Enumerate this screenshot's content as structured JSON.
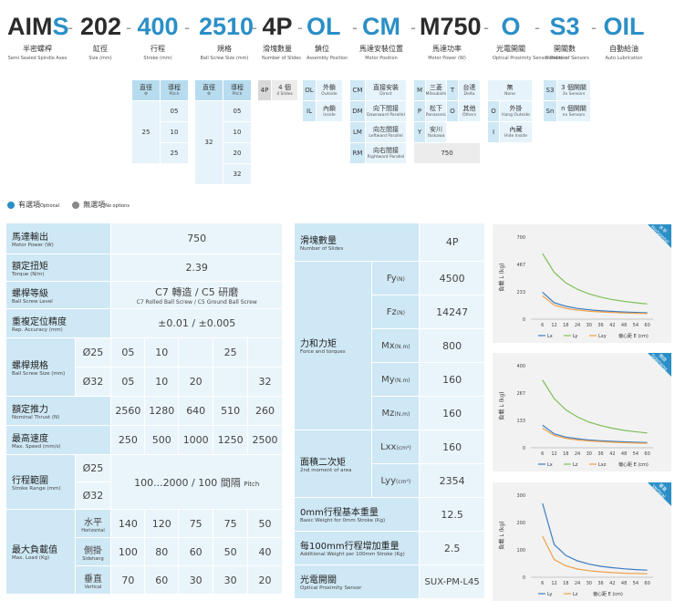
{
  "header": {
    "segments": [
      {
        "code_dark": "AIM",
        "code_blue": "S",
        "zh": "半密螺桿",
        "en": "Semi Sealed Spindle Axes"
      },
      {
        "code_dark": "202",
        "code_blue": "",
        "zh": "缸徑",
        "en": "Size (mm)"
      },
      {
        "code_dark": "",
        "code_blue": "400",
        "zh": "行程",
        "en": "Stroke (mm)"
      },
      {
        "code_dark": "",
        "code_blue": "2510",
        "zh": "規格",
        "en": "Ball Screw Size (mm)"
      },
      {
        "code_dark": "4P",
        "code_blue": "",
        "zh": "滑塊數量",
        "en": "Number of Slides"
      },
      {
        "code_dark": "",
        "code_blue": "OL",
        "zh": "鎖位",
        "en": "Assembly Position"
      },
      {
        "code_dark": "",
        "code_blue": "CM",
        "zh": "馬達安裝位置",
        "en": "Motor Position"
      },
      {
        "code_dark": "M750",
        "code_blue": "",
        "zh": "馬達功率",
        "en": "Motor Power (W)"
      },
      {
        "code_dark": "",
        "code_blue": "O",
        "zh": "光電開關",
        "en": "Optical Proximity Sensor Position"
      },
      {
        "code_dark": "",
        "code_blue": "S3",
        "zh": "開關數",
        "en": "Number of Sensors"
      },
      {
        "code_dark": "",
        "code_blue": "OIL",
        "zh": "自動給油",
        "en": "Auto Lubrication"
      }
    ],
    "dash": "-"
  },
  "options": {
    "screw": {
      "head_dia": "直徑",
      "head_dia_sub": "Φ",
      "head_pitch": "導程",
      "head_pitch_sub": "Pitch",
      "dia": "25",
      "pitches": [
        "05",
        "10",
        "25"
      ]
    },
    "spec": {
      "head_dia": "直徑",
      "head_dia_sub": "Φ",
      "head_pitch": "導程",
      "head_pitch_sub": "Pitch",
      "dia": "32",
      "pitches": [
        "05",
        "10",
        "20",
        "32"
      ]
    },
    "slides": {
      "code": "4P",
      "zh": "4 個",
      "en": "4 Slides"
    },
    "assembly": [
      {
        "code": "OL",
        "zh": "外鎖",
        "en": "Outside"
      },
      {
        "code": "IL",
        "zh": "內鎖",
        "en": "Inside"
      }
    ],
    "motor_pos": [
      {
        "code": "CM",
        "zh": "直接安裝",
        "en": "Direct"
      },
      {
        "code": "DM",
        "zh": "向下間接",
        "en": "Downward Parallel"
      },
      {
        "code": "LM",
        "zh": "向左間接",
        "en": "Leftward Parallel"
      },
      {
        "code": "RM",
        "zh": "向右間接",
        "en": "Rightward Parallel"
      }
    ],
    "motor_brand": [
      {
        "code": "M",
        "zh": "三菱",
        "en": "Mitsubishi"
      },
      {
        "code": "T",
        "zh": "台達",
        "en": "Delta"
      },
      {
        "code": "P",
        "zh": "松下",
        "en": "Panasonic"
      },
      {
        "code": "O",
        "zh": "其他",
        "en": "Others"
      },
      {
        "code": "Y",
        "zh": "安川",
        "en": "Yaskawa"
      }
    ],
    "motor_power": "750",
    "sensor_pos": [
      {
        "code": "",
        "zh": "無",
        "en": "None"
      },
      {
        "code": "O",
        "zh": "外掛",
        "en": "Hang Outside"
      },
      {
        "code": "I",
        "zh": "內藏",
        "en": "Hide Inside"
      }
    ],
    "sensors": [
      {
        "code": "S3",
        "zh": "3 個開關",
        "en": "3x Sensors"
      },
      {
        "code": "Sn",
        "zh": "n 個開關",
        "en": "nx Sensors"
      }
    ]
  },
  "legend": {
    "optional": "有選項",
    "optional_en": "Optional",
    "none": "無選項",
    "none_en": "No options",
    "optional_color": "#2b8fc6",
    "none_color": "#888888"
  },
  "spec_left": {
    "motor_power": {
      "zh": "馬達輸出",
      "en": "Motor Power (W)",
      "value": "750"
    },
    "torque": {
      "zh": "額定扭矩",
      "en": "Torque (N/m)",
      "value": "2.39"
    },
    "screw_grade": {
      "zh": "螺桿等級",
      "en": "Ball Screw Level",
      "value": "C7 轉造 / C5 研磨",
      "value_en": "C7 Rolled Ball Screw / C5 Ground Ball Screw"
    },
    "repeat": {
      "zh": "重複定位精度",
      "en": "Rep. Accuracy (mm)",
      "value": "±0.01 / ±0.005"
    },
    "screw_spec": {
      "zh": "螺桿規格",
      "en": "Ball Screw Size (mm)",
      "rows": [
        {
          "dia": "Ø25",
          "cells": [
            "05",
            "10",
            "",
            "25",
            ""
          ]
        },
        {
          "dia": "Ø32",
          "cells": [
            "05",
            "10",
            "20",
            "",
            "32"
          ]
        }
      ]
    },
    "thrust": {
      "zh": "額定推力",
      "en": "Nominal Thrust (N)",
      "cells": [
        "2560",
        "1280",
        "640",
        "510",
        "260"
      ]
    },
    "speed": {
      "zh": "最高速度",
      "en": "Max. Speed (mm/s)",
      "cells": [
        "250",
        "500",
        "1000",
        "1250",
        "2500"
      ]
    },
    "stroke": {
      "zh": "行程範圍",
      "en": "Stroke Range (mm)",
      "dia1": "Ø25",
      "dia2": "Ø32",
      "value": "100...2000 / 100 間隔",
      "value_en": "Pitch"
    },
    "load": {
      "zh": "最大負載值",
      "en": "Max. Load (Kg)",
      "rows": [
        {
          "zh": "水平",
          "en": "Horizontal",
          "cells": [
            "140",
            "120",
            "75",
            "75",
            "50"
          ]
        },
        {
          "zh": "側掛",
          "en": "Sidehang",
          "cells": [
            "100",
            "80",
            "60",
            "50",
            "40"
          ]
        },
        {
          "zh": "垂直",
          "en": "Vertical",
          "cells": [
            "70",
            "60",
            "30",
            "30",
            "20"
          ]
        }
      ]
    }
  },
  "spec_right": {
    "slides": {
      "zh": "滑塊數量",
      "en": "Number of Slides",
      "value": "4P"
    },
    "force": {
      "zh": "力和力矩",
      "en": "Force and torques",
      "rows": [
        {
          "k": "Fy",
          "u": "(N)",
          "v": "4500"
        },
        {
          "k": "Fz",
          "u": "(N)",
          "v": "14247"
        },
        {
          "k": "Mx",
          "u": "(N.m)",
          "v": "800"
        },
        {
          "k": "My",
          "u": "(N.m)",
          "v": "160"
        },
        {
          "k": "Mz",
          "u": "(N.m)",
          "v": "160"
        }
      ]
    },
    "moment": {
      "zh": "面積二次矩",
      "en": "2nd moment of area",
      "rows": [
        {
          "k": "Lxx",
          "u": "(cm⁴)",
          "v": "160"
        },
        {
          "k": "Lyy",
          "u": "(cm⁴)",
          "v": "2354"
        }
      ]
    },
    "base_weight": {
      "zh": "0mm行程基本重量",
      "en": "Basic Weight for 0mm Stroke (Kg)",
      "value": "12.5"
    },
    "add_weight": {
      "zh": "每100mm行程增加重量",
      "en": "Additional Weight per 100mm Stroke (Kg)",
      "value": "2.5"
    },
    "sensor": {
      "zh": "光電開關",
      "en": "Optical Proximity Sensor",
      "value": "SUX-PM-L45"
    }
  },
  "chart_data": [
    {
      "type": "line",
      "ribbon": "水平",
      "ribbon_en": "Horizontal",
      "ylabel": "負載 L (kg)",
      "xlabel": "偏心距 E (cm)",
      "x": [
        6,
        12,
        18,
        24,
        30,
        36,
        42,
        48,
        54,
        60
      ],
      "yticks": [
        0,
        233,
        467,
        700
      ],
      "ylim": [
        0,
        700
      ],
      "series": [
        {
          "name": "Lx",
          "color": "#3a7cc0",
          "values": [
            230,
            140,
            110,
            92,
            80,
            72,
            66,
            61,
            58,
            55
          ]
        },
        {
          "name": "Ly",
          "color": "#7fbf5a",
          "values": [
            560,
            400,
            310,
            255,
            215,
            188,
            167,
            152,
            140,
            130
          ]
        },
        {
          "name": "Lxy",
          "color": "#f0a04a",
          "values": [
            200,
            120,
            92,
            78,
            68,
            62,
            57,
            53,
            50,
            48
          ]
        }
      ]
    },
    {
      "type": "line",
      "ribbon": "側掛",
      "ribbon_en": "Sidehang",
      "ylabel": "負載 L (kg)",
      "xlabel": "偏心距 E (cm)",
      "x": [
        6,
        12,
        18,
        24,
        30,
        36,
        42,
        48,
        54,
        60
      ],
      "yticks": [
        0,
        133,
        267,
        400
      ],
      "ylim": [
        0,
        400
      ],
      "series": [
        {
          "name": "Lx",
          "color": "#3a7cc0",
          "values": [
            110,
            68,
            52,
            44,
            38,
            34,
            31,
            29,
            27,
            25
          ]
        },
        {
          "name": "Lz",
          "color": "#7fbf5a",
          "values": [
            330,
            240,
            185,
            150,
            125,
            108,
            95,
            85,
            78,
            72
          ]
        },
        {
          "name": "Lxz",
          "color": "#f0a04a",
          "values": [
            95,
            60,
            46,
            38,
            33,
            30,
            27,
            25,
            23,
            22
          ]
        }
      ]
    },
    {
      "type": "line",
      "ribbon": "垂直",
      "ribbon_en": "Vertical",
      "ylabel": "負載 L (kg)",
      "xlabel": "偏心距 E (cm)",
      "x": [
        6,
        12,
        18,
        24,
        30,
        36,
        42,
        48,
        54,
        60
      ],
      "yticks": [
        0,
        100,
        200,
        300
      ],
      "ylim": [
        0,
        300
      ],
      "series": [
        {
          "name": "Ly",
          "color": "#3a7cc0",
          "values": [
            270,
            120,
            80,
            60,
            48,
            40,
            35,
            31,
            28,
            26
          ]
        },
        {
          "name": "Lz",
          "color": "#f0a04a",
          "values": [
            150,
            65,
            42,
            30,
            24,
            20,
            17,
            15,
            14,
            13
          ]
        }
      ]
    }
  ]
}
